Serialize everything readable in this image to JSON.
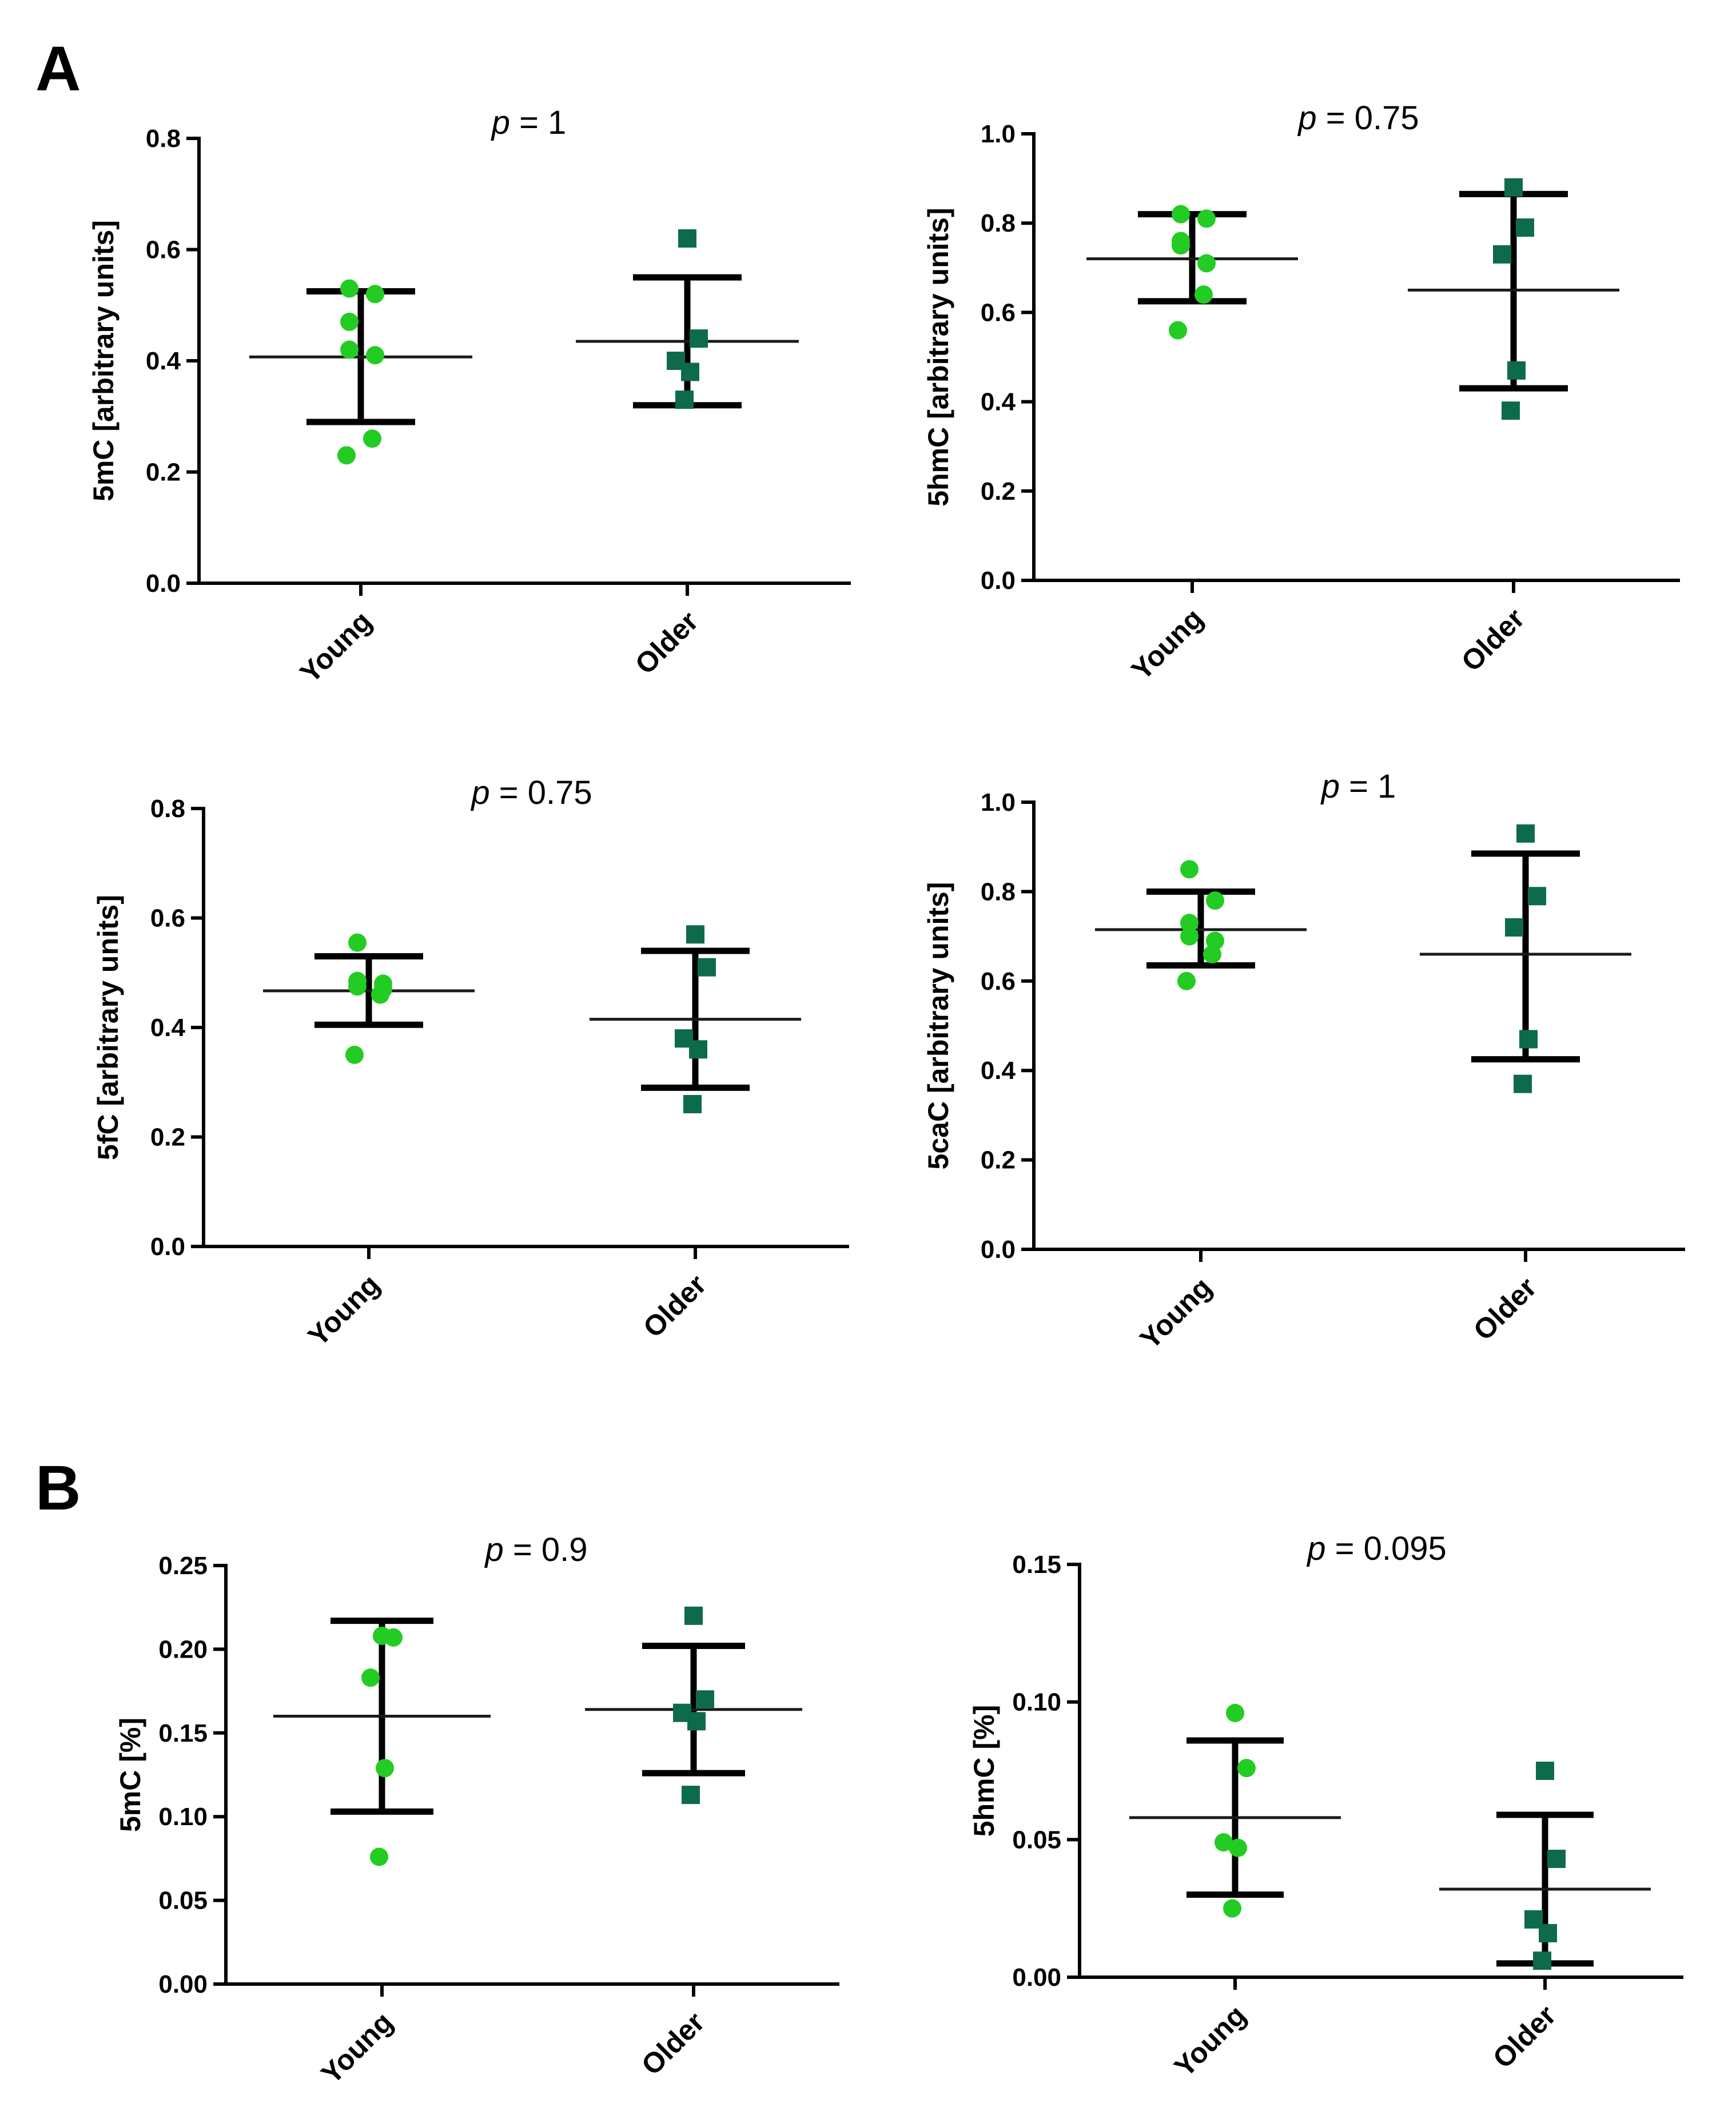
{
  "panel_letters": [
    "A",
    "B"
  ],
  "colors": {
    "young": "#22cc22",
    "older": "#0e6b4a",
    "axis": "#000000"
  },
  "chart_data": [
    {
      "type": "scatter",
      "panel": "A",
      "ylabel": "5mC [arbitrary units]",
      "ylim": [
        0,
        0.8
      ],
      "yticks": [
        "0.0",
        "0.2",
        "0.4",
        "0.6",
        "0.8"
      ],
      "p_label": "p",
      "p_value": " = 1",
      "categories": [
        "Young",
        "Older"
      ],
      "series": [
        {
          "name": "Young",
          "marker": "circle",
          "points": [
            0.53,
            0.52,
            0.47,
            0.42,
            0.41,
            0.26,
            0.23
          ],
          "mean": 0.407,
          "sd_low": 0.29,
          "sd_high": 0.525
        },
        {
          "name": "Older",
          "marker": "square",
          "points": [
            0.62,
            0.44,
            0.4,
            0.38,
            0.33
          ],
          "mean": 0.435,
          "sd_low": 0.32,
          "sd_high": 0.55
        }
      ]
    },
    {
      "type": "scatter",
      "panel": "A",
      "ylabel": "5hmC [arbitrary units]",
      "ylim": [
        0,
        1.0
      ],
      "yticks": [
        "0.0",
        "0.2",
        "0.4",
        "0.6",
        "0.8",
        "1.0"
      ],
      "p_label": "p",
      "p_value": " = 0.75",
      "categories": [
        "Young",
        "Older"
      ],
      "series": [
        {
          "name": "Young",
          "marker": "circle",
          "points": [
            0.82,
            0.81,
            0.76,
            0.75,
            0.71,
            0.64,
            0.56
          ],
          "mean": 0.72,
          "sd_low": 0.625,
          "sd_high": 0.82
        },
        {
          "name": "Older",
          "marker": "square",
          "points": [
            0.88,
            0.79,
            0.73,
            0.47,
            0.38
          ],
          "mean": 0.65,
          "sd_low": 0.43,
          "sd_high": 0.865
        }
      ]
    },
    {
      "type": "scatter",
      "panel": "A",
      "ylabel": "5fC [arbitrary units]",
      "ylim": [
        0,
        0.8
      ],
      "yticks": [
        "0.0",
        "0.2",
        "0.4",
        "0.6",
        "0.8"
      ],
      "p_label": "p",
      "p_value": " = 0.75",
      "categories": [
        "Young",
        "Older"
      ],
      "series": [
        {
          "name": "Young",
          "marker": "circle",
          "points": [
            0.555,
            0.48,
            0.485,
            0.475,
            0.47,
            0.46,
            0.35
          ],
          "mean": 0.467,
          "sd_low": 0.405,
          "sd_high": 0.53
        },
        {
          "name": "Older",
          "marker": "square",
          "points": [
            0.57,
            0.51,
            0.38,
            0.36,
            0.26
          ],
          "mean": 0.415,
          "sd_low": 0.29,
          "sd_high": 0.54
        }
      ]
    },
    {
      "type": "scatter",
      "panel": "A",
      "ylabel": "5caC [arbitrary units]",
      "ylim": [
        0,
        1.0
      ],
      "yticks": [
        "0.0",
        "0.2",
        "0.4",
        "0.6",
        "0.8",
        "1.0"
      ],
      "p_label": "p",
      "p_value": " = 1",
      "categories": [
        "Young",
        "Older"
      ],
      "series": [
        {
          "name": "Young",
          "marker": "circle",
          "points": [
            0.85,
            0.78,
            0.73,
            0.7,
            0.69,
            0.66,
            0.6
          ],
          "mean": 0.715,
          "sd_low": 0.635,
          "sd_high": 0.8
        },
        {
          "name": "Older",
          "marker": "square",
          "points": [
            0.93,
            0.79,
            0.72,
            0.47,
            0.37
          ],
          "mean": 0.66,
          "sd_low": 0.425,
          "sd_high": 0.885
        }
      ]
    },
    {
      "type": "scatter",
      "panel": "B",
      "ylabel": "5mC [%]",
      "ylim": [
        0,
        0.25
      ],
      "yticks": [
        "0.00",
        "0.05",
        "0.10",
        "0.15",
        "0.20",
        "0.25"
      ],
      "p_label": "p",
      "p_value": " = 0.9",
      "categories": [
        "Young",
        "Older"
      ],
      "series": [
        {
          "name": "Young",
          "marker": "circle",
          "points": [
            0.208,
            0.207,
            0.183,
            0.129,
            0.076
          ],
          "mean": 0.16,
          "sd_low": 0.103,
          "sd_high": 0.217
        },
        {
          "name": "Older",
          "marker": "square",
          "points": [
            0.22,
            0.17,
            0.162,
            0.157,
            0.113
          ],
          "mean": 0.164,
          "sd_low": 0.126,
          "sd_high": 0.202
        }
      ]
    },
    {
      "type": "scatter",
      "panel": "B",
      "ylabel": "5hmC [%]",
      "ylim": [
        0,
        0.15
      ],
      "yticks": [
        "0.00",
        "0.05",
        "0.10",
        "0.15"
      ],
      "p_label": "p",
      "p_value": " = 0.095",
      "categories": [
        "Young",
        "Older"
      ],
      "series": [
        {
          "name": "Young",
          "marker": "circle",
          "points": [
            0.096,
            0.076,
            0.049,
            0.047,
            0.025
          ],
          "mean": 0.058,
          "sd_low": 0.03,
          "sd_high": 0.086
        },
        {
          "name": "Older",
          "marker": "square",
          "points": [
            0.075,
            0.043,
            0.021,
            0.016,
            0.006
          ],
          "mean": 0.032,
          "sd_low": 0.005,
          "sd_high": 0.059
        }
      ]
    }
  ]
}
